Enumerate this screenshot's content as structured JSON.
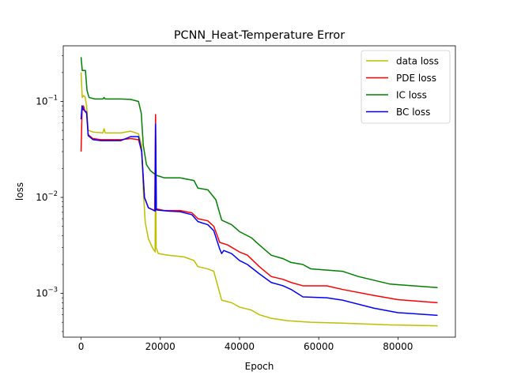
{
  "chart_data": {
    "type": "line",
    "title": "PCNN_Heat-Temperature Error",
    "xlabel": "Epoch",
    "ylabel": "loss",
    "xlim": [
      -4500,
      94500
    ],
    "ylim": [
      0.00035,
      0.38
    ],
    "yscale": "log",
    "xticks": [
      0,
      20000,
      40000,
      60000,
      80000
    ],
    "xtick_labels": [
      "0",
      "20000",
      "40000",
      "60000",
      "80000"
    ],
    "yticks": [
      0.001,
      0.01,
      0.1
    ],
    "ytick_labels": [
      {
        "base": "10",
        "exp": "−3"
      },
      {
        "base": "10",
        "exp": "−2"
      },
      {
        "base": "10",
        "exp": "−1"
      }
    ],
    "grid": false,
    "legend_position": "top-right",
    "series": [
      {
        "name": "data loss",
        "color": "#bfbf00",
        "points": [
          [
            0,
            0.2
          ],
          [
            300,
            0.11
          ],
          [
            600,
            0.115
          ],
          [
            1000,
            0.112
          ],
          [
            1400,
            0.09
          ],
          [
            1800,
            0.05
          ],
          [
            3000,
            0.048
          ],
          [
            5500,
            0.047
          ],
          [
            5800,
            0.052
          ],
          [
            6100,
            0.047
          ],
          [
            10000,
            0.047
          ],
          [
            12500,
            0.049
          ],
          [
            14500,
            0.046
          ],
          [
            15300,
            0.035
          ],
          [
            15700,
            0.012
          ],
          [
            16200,
            0.0055
          ],
          [
            17000,
            0.0037
          ],
          [
            18000,
            0.003
          ],
          [
            18700,
            0.0027
          ],
          [
            18800,
            0.06
          ],
          [
            18950,
            0.003
          ],
          [
            19500,
            0.0026
          ],
          [
            22000,
            0.0025
          ],
          [
            26000,
            0.0024
          ],
          [
            28500,
            0.0022
          ],
          [
            29500,
            0.0019
          ],
          [
            32000,
            0.0018
          ],
          [
            33500,
            0.0017
          ],
          [
            34500,
            0.0012
          ],
          [
            35500,
            0.00085
          ],
          [
            38000,
            0.0008
          ],
          [
            40000,
            0.00072
          ],
          [
            43000,
            0.00067
          ],
          [
            45000,
            0.0006
          ],
          [
            48000,
            0.00055
          ],
          [
            52000,
            0.00052
          ],
          [
            58000,
            0.0005
          ],
          [
            66000,
            0.00049
          ],
          [
            78000,
            0.00047
          ],
          [
            90000,
            0.00046
          ]
        ]
      },
      {
        "name": "PDE loss",
        "color": "#ff0000",
        "points": [
          [
            0,
            0.03
          ],
          [
            250,
            0.08
          ],
          [
            600,
            0.09
          ],
          [
            1000,
            0.078
          ],
          [
            1400,
            0.078
          ],
          [
            1800,
            0.045
          ],
          [
            3000,
            0.041
          ],
          [
            5000,
            0.04
          ],
          [
            10000,
            0.04
          ],
          [
            12500,
            0.041
          ],
          [
            14500,
            0.04
          ],
          [
            15300,
            0.03
          ],
          [
            16000,
            0.01
          ],
          [
            17000,
            0.0078
          ],
          [
            18600,
            0.0073
          ],
          [
            18800,
            0.073
          ],
          [
            19000,
            0.0076
          ],
          [
            21000,
            0.0073
          ],
          [
            25000,
            0.0073
          ],
          [
            28000,
            0.0069
          ],
          [
            29500,
            0.006
          ],
          [
            32000,
            0.0057
          ],
          [
            33500,
            0.005
          ],
          [
            35000,
            0.0034
          ],
          [
            37000,
            0.0032
          ],
          [
            40000,
            0.0027
          ],
          [
            42000,
            0.0025
          ],
          [
            45000,
            0.0019
          ],
          [
            48000,
            0.0015
          ],
          [
            51000,
            0.0014
          ],
          [
            53000,
            0.0013
          ],
          [
            56000,
            0.0012
          ],
          [
            62000,
            0.0012
          ],
          [
            66000,
            0.0011
          ],
          [
            74000,
            0.00095
          ],
          [
            80000,
            0.00086
          ],
          [
            90000,
            0.0008
          ]
        ]
      },
      {
        "name": "IC loss",
        "color": "#008000",
        "points": [
          [
            0,
            0.29
          ],
          [
            300,
            0.21
          ],
          [
            700,
            0.21
          ],
          [
            1100,
            0.21
          ],
          [
            1500,
            0.13
          ],
          [
            2000,
            0.11
          ],
          [
            3500,
            0.106
          ],
          [
            5500,
            0.106
          ],
          [
            5800,
            0.11
          ],
          [
            6100,
            0.106
          ],
          [
            10000,
            0.106
          ],
          [
            12500,
            0.105
          ],
          [
            14500,
            0.1
          ],
          [
            15200,
            0.075
          ],
          [
            15700,
            0.035
          ],
          [
            16500,
            0.022
          ],
          [
            17500,
            0.019
          ],
          [
            19000,
            0.017
          ],
          [
            21000,
            0.016
          ],
          [
            25000,
            0.016
          ],
          [
            28500,
            0.015
          ],
          [
            29500,
            0.0125
          ],
          [
            32000,
            0.012
          ],
          [
            34000,
            0.0095
          ],
          [
            35500,
            0.0058
          ],
          [
            38000,
            0.0052
          ],
          [
            40000,
            0.0044
          ],
          [
            43000,
            0.0038
          ],
          [
            45000,
            0.0032
          ],
          [
            48000,
            0.0025
          ],
          [
            51000,
            0.0023
          ],
          [
            53000,
            0.0021
          ],
          [
            56000,
            0.002
          ],
          [
            58000,
            0.0018
          ],
          [
            66000,
            0.0017
          ],
          [
            70000,
            0.0015
          ],
          [
            78000,
            0.00125
          ],
          [
            90000,
            0.00115
          ]
        ]
      },
      {
        "name": "BC loss",
        "color": "#0000ff",
        "points": [
          [
            0,
            0.065
          ],
          [
            250,
            0.09
          ],
          [
            600,
            0.082
          ],
          [
            1000,
            0.08
          ],
          [
            1400,
            0.075
          ],
          [
            1800,
            0.044
          ],
          [
            3000,
            0.04
          ],
          [
            5000,
            0.039
          ],
          [
            10000,
            0.039
          ],
          [
            12500,
            0.043
          ],
          [
            14500,
            0.043
          ],
          [
            15300,
            0.03
          ],
          [
            16000,
            0.01
          ],
          [
            17000,
            0.0078
          ],
          [
            18700,
            0.0072
          ],
          [
            18800,
            0.058
          ],
          [
            19000,
            0.0074
          ],
          [
            22000,
            0.0072
          ],
          [
            25000,
            0.0071
          ],
          [
            28000,
            0.0066
          ],
          [
            29500,
            0.0056
          ],
          [
            32000,
            0.0052
          ],
          [
            33500,
            0.0045
          ],
          [
            35000,
            0.0029
          ],
          [
            35500,
            0.0026
          ],
          [
            36000,
            0.0028
          ],
          [
            38000,
            0.0026
          ],
          [
            40000,
            0.0022
          ],
          [
            42000,
            0.002
          ],
          [
            45000,
            0.0016
          ],
          [
            48000,
            0.0013
          ],
          [
            51000,
            0.0012
          ],
          [
            53000,
            0.0011
          ],
          [
            56000,
            0.00092
          ],
          [
            62000,
            0.0009
          ],
          [
            66000,
            0.00085
          ],
          [
            74000,
            0.0007
          ],
          [
            80000,
            0.00063
          ],
          [
            90000,
            0.00059
          ]
        ]
      }
    ]
  }
}
